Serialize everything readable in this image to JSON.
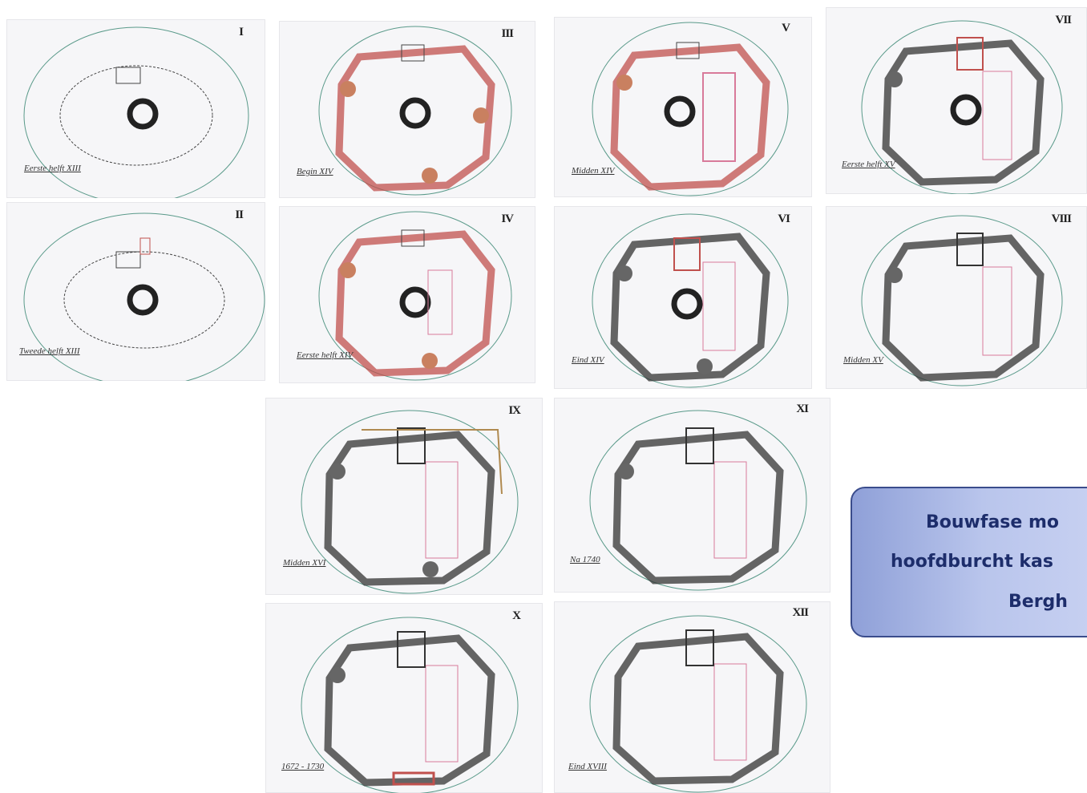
{
  "sheets": [
    {
      "roman": "I",
      "caption": "Eerste helft XIII"
    },
    {
      "roman": "II",
      "caption": "Tweede helft XIII"
    },
    {
      "roman": "III",
      "caption": "Begin XIV"
    },
    {
      "roman": "IV",
      "caption": "Eerste helft XIV"
    },
    {
      "roman": "V",
      "caption": "Midden XIV"
    },
    {
      "roman": "VI",
      "caption": "Eind XIV"
    },
    {
      "roman": "VII",
      "caption": "Eerste helft XV"
    },
    {
      "roman": "VIII",
      "caption": "Midden XV"
    },
    {
      "roman": "IX",
      "caption": "Midden XVI"
    },
    {
      "roman": "X",
      "caption": "1672 - 1730"
    },
    {
      "roman": "XI",
      "caption": "Na 1740"
    },
    {
      "roman": "XII",
      "caption": "Eind XVIII"
    }
  ],
  "callout": {
    "line1": "Bouwfase mo",
    "line2": "hoofdburcht kas",
    "line3": "Bergh"
  },
  "colors": {
    "outline": "#5a9a8a",
    "red_phase": "#c0504d",
    "dark_phase": "#333333",
    "brown_phase": "#b08a50",
    "pink_phase": "#d87a9a"
  }
}
